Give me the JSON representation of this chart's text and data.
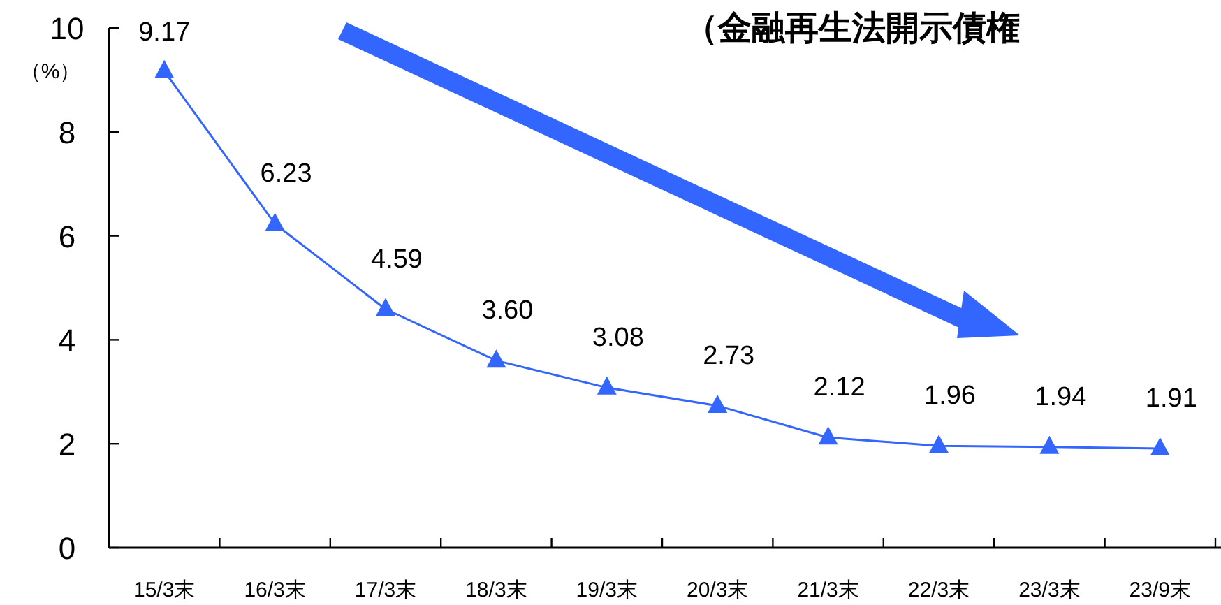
{
  "chart_data": {
    "type": "line",
    "title": "（金融再生法開示債権",
    "ylabel": "（%）",
    "categories": [
      "15/3末",
      "16/3末",
      "17/3末",
      "18/3末",
      "19/3末",
      "20/3末",
      "21/3末",
      "22/3末",
      "23/3末",
      "23/9末"
    ],
    "series": [
      {
        "color": "#3366ff",
        "values": [
          9.17,
          6.23,
          4.59,
          3.6,
          3.08,
          2.73,
          2.12,
          1.96,
          1.94,
          1.91
        ]
      }
    ],
    "value_labels": [
      "9.17",
      "6.23",
      "4.59",
      "3.60",
      "3.08",
      "2.73",
      "2.12",
      "1.96",
      "1.94",
      "1.91"
    ],
    "ylim": [
      0,
      10
    ],
    "yticks": [
      0,
      2,
      4,
      6,
      8,
      10
    ],
    "marker": "triangle",
    "grid": false
  }
}
